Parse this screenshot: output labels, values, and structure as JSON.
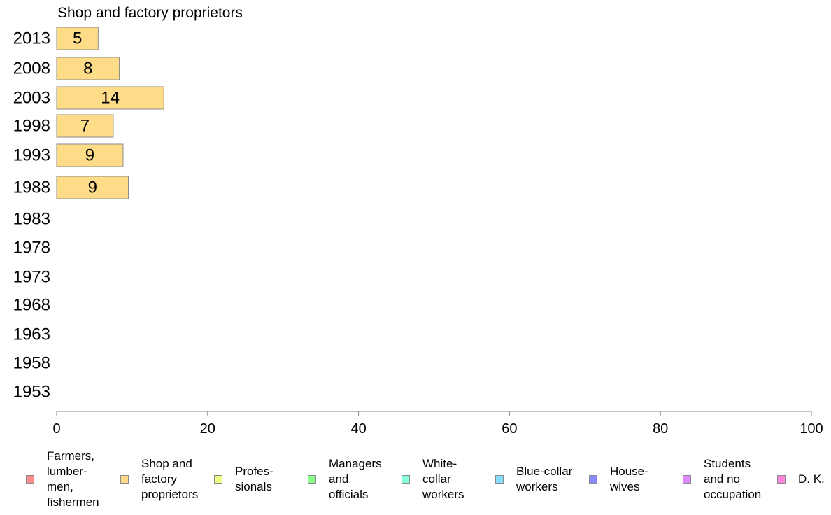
{
  "chart_data": {
    "type": "bar",
    "orientation": "horizontal",
    "title": "Shop and factory proprietors",
    "categories": [
      "2013",
      "2008",
      "2003",
      "1998",
      "1993",
      "1988",
      "1983",
      "1978",
      "1973",
      "1968",
      "1963",
      "1958",
      "1953"
    ],
    "series": [
      {
        "name": "Shop and factory proprietors",
        "values": [
          5.5,
          8.3,
          14.2,
          7.5,
          8.8,
          9.5,
          null,
          null,
          null,
          null,
          null,
          null,
          null
        ],
        "data_labels": [
          "5",
          "8",
          "14",
          "7",
          "9",
          "9",
          "",
          "",
          "",
          "",
          "",
          "",
          ""
        ],
        "color": "#ffdd88"
      }
    ],
    "xlim": [
      0,
      100
    ],
    "xticks": [
      "0",
      "20",
      "40",
      "60",
      "80",
      "100"
    ],
    "grid": false,
    "legend": {
      "placement": "bottom",
      "items": [
        {
          "label": "Farmers,\nlumber-\nmen,\nfishermen",
          "color": "#f98c8c"
        },
        {
          "label": "Shop and\nfactory\nproprietors",
          "color": "#ffdd88"
        },
        {
          "label": "Profes-\nsionals",
          "color": "#eeff88"
        },
        {
          "label": "Managers\nand\nofficials",
          "color": "#88ff88"
        },
        {
          "label": "White-\ncollar\nworkers",
          "color": "#88ffdd"
        },
        {
          "label": "Blue-collar\nworkers",
          "color": "#88ddff"
        },
        {
          "label": "House-\nwives",
          "color": "#8888ff"
        },
        {
          "label": "Students\nand no\noccupation",
          "color": "#dd88ff"
        },
        {
          "label": "D. K.",
          "color": "#ff88dd"
        }
      ]
    }
  }
}
